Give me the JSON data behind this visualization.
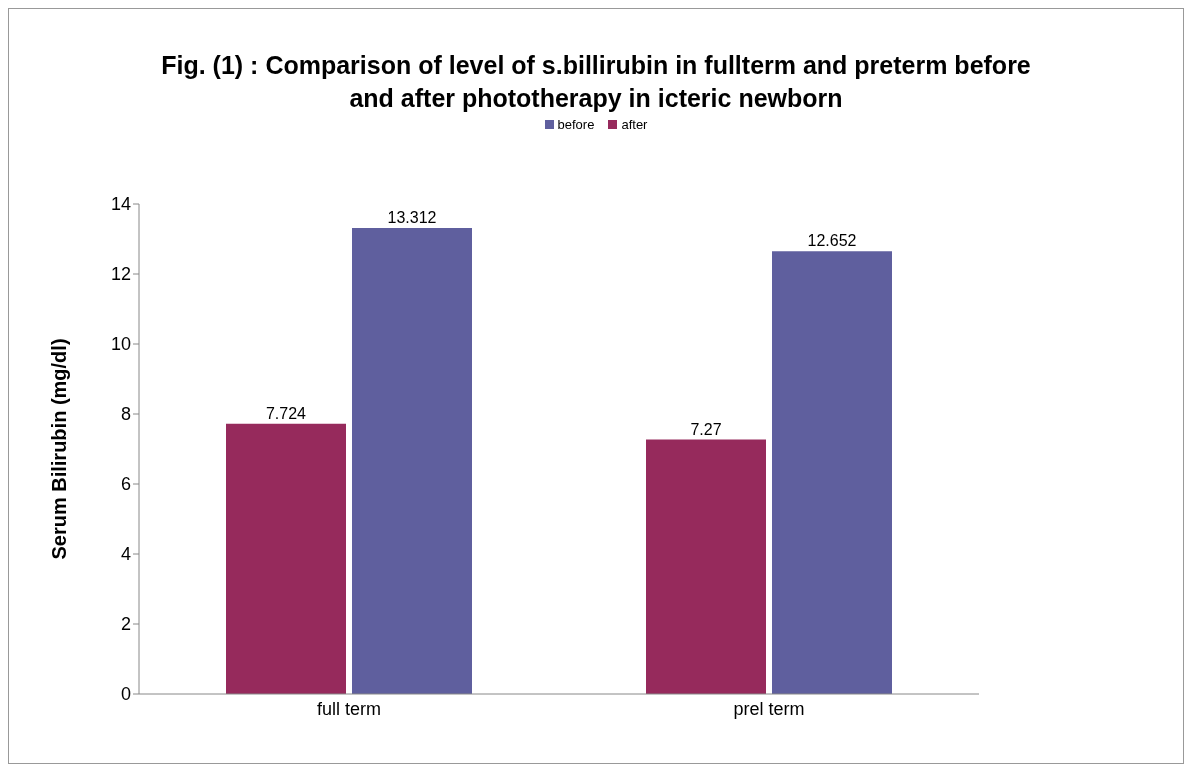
{
  "chart_data": {
    "type": "bar",
    "title": "Fig. (1) : Comparison of level of s.billirubin in fullterm and preterm before and after phototherapy in icteric newborn",
    "ylabel": "Serum Bilirubin  (mg/dl)",
    "categories": [
      "full term",
      "prel term"
    ],
    "series": [
      {
        "name": "before",
        "color": "#5f5f9e",
        "values": [
          13.312,
          12.652
        ]
      },
      {
        "name": "after",
        "color": "#962a5c",
        "values": [
          7.724,
          7.27
        ]
      }
    ],
    "ylim": [
      0,
      14
    ],
    "yticks": [
      0,
      2,
      4,
      6,
      8,
      10,
      12,
      14
    ],
    "data_labels": true,
    "legend": "top",
    "grid": false
  }
}
